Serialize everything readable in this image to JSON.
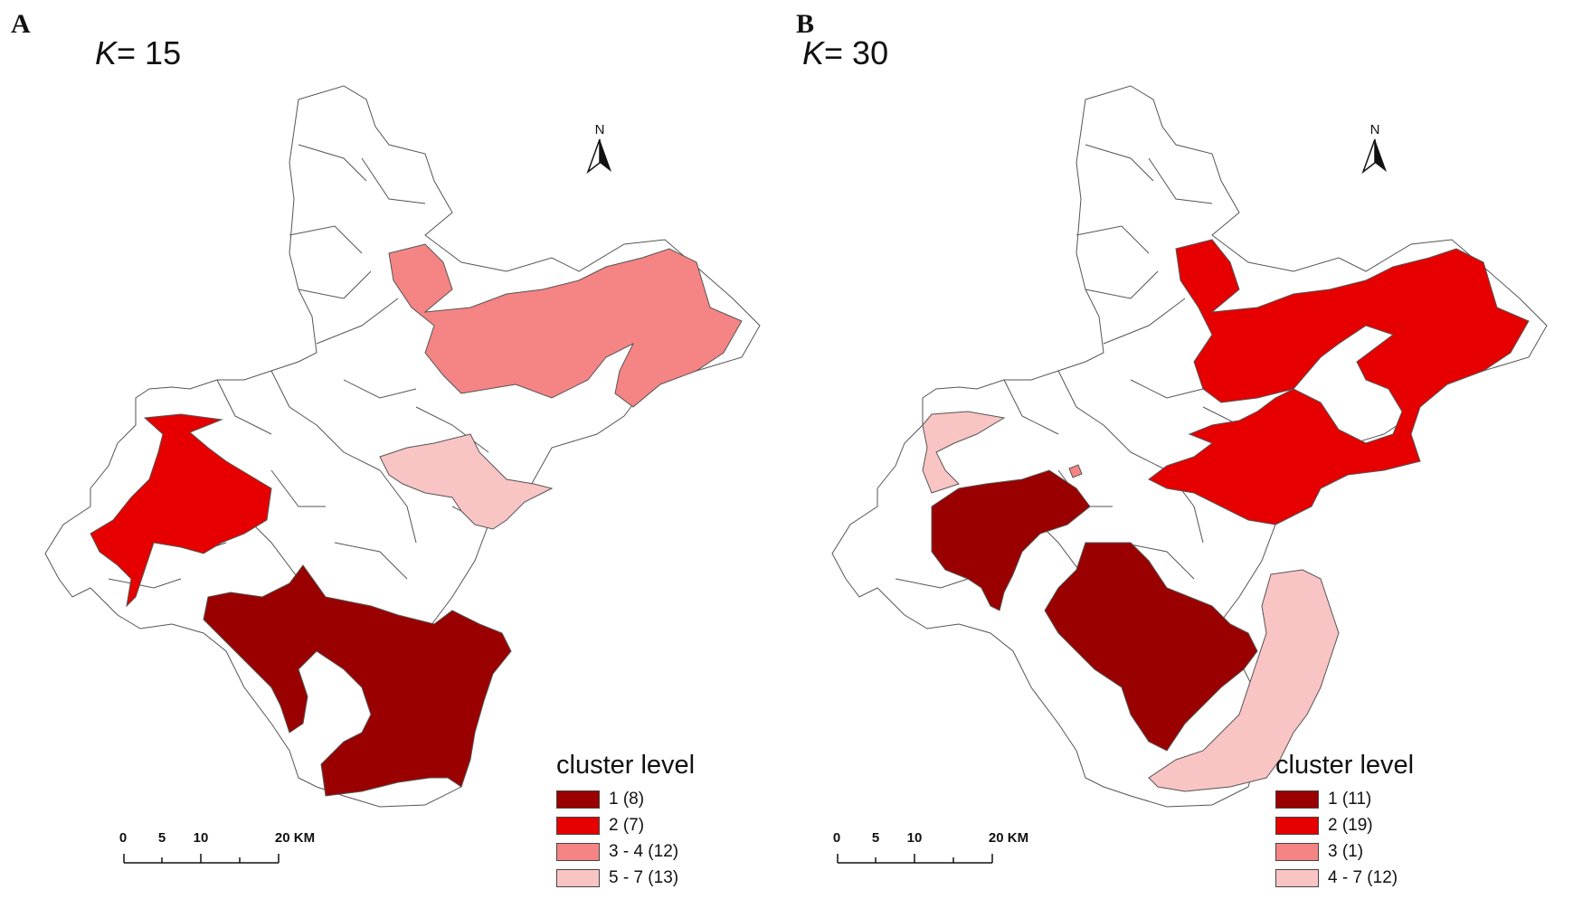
{
  "panels": [
    {
      "label": "A",
      "k_var": "K",
      "k_value": "= 15",
      "north": "N",
      "scale": {
        "ticks": [
          "0",
          "5",
          "10",
          "20 KM"
        ],
        "tick_km": [
          0,
          5,
          10,
          20
        ]
      },
      "legend": {
        "title": "cluster level",
        "items": [
          {
            "label": "1 (8)",
            "color": "#9a0000"
          },
          {
            "label": "2 (7)",
            "color": "#e60000"
          },
          {
            "label": "3 - 4 (12)",
            "color": "#f58484"
          },
          {
            "label": "5 - 7 (13)",
            "color": "#f9c4c4"
          }
        ]
      }
    },
    {
      "label": "B",
      "k_var": "K",
      "k_value": "= 30",
      "north": "N",
      "scale": {
        "ticks": [
          "0",
          "5",
          "10",
          "20 KM"
        ],
        "tick_km": [
          0,
          5,
          10,
          20
        ]
      },
      "legend": {
        "title": "cluster level",
        "items": [
          {
            "label": "1 (11)",
            "color": "#9a0000"
          },
          {
            "label": "2 (19)",
            "color": "#e60000"
          },
          {
            "label": "3 (1)",
            "color": "#f58484"
          },
          {
            "label": "4 - 7 (12)",
            "color": "#f9c4c4"
          }
        ]
      }
    }
  ]
}
